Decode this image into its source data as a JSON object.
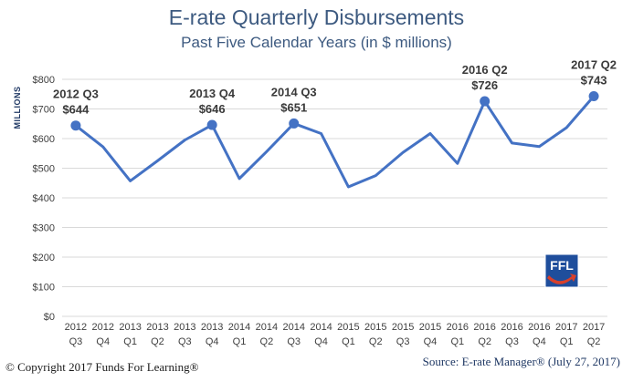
{
  "chart_data": {
    "type": "line",
    "title": "E-rate Quarterly Disbursements",
    "subtitle": "Past Five Calendar Years (in $ millions)",
    "ylabel": "MILLIONS",
    "ylim": [
      0,
      800
    ],
    "yticks": [
      "$0",
      "$100",
      "$200",
      "$300",
      "$400",
      "$500",
      "$600",
      "$700",
      "$800"
    ],
    "grid": true,
    "categories": [
      [
        "2012",
        "Q3"
      ],
      [
        "2012",
        "Q4"
      ],
      [
        "2013",
        "Q1"
      ],
      [
        "2013",
        "Q2"
      ],
      [
        "2013",
        "Q3"
      ],
      [
        "2013",
        "Q4"
      ],
      [
        "2014",
        "Q1"
      ],
      [
        "2014",
        "Q2"
      ],
      [
        "2014",
        "Q3"
      ],
      [
        "2014",
        "Q4"
      ],
      [
        "2015",
        "Q1"
      ],
      [
        "2015",
        "Q2"
      ],
      [
        "2015",
        "Q3"
      ],
      [
        "2015",
        "Q4"
      ],
      [
        "2016",
        "Q1"
      ],
      [
        "2016",
        "Q2"
      ],
      [
        "2016",
        "Q3"
      ],
      [
        "2016",
        "Q4"
      ],
      [
        "2017",
        "Q1"
      ],
      [
        "2017",
        "Q2"
      ]
    ],
    "values": [
      644,
      572,
      457,
      525,
      595,
      646,
      465,
      556,
      651,
      617,
      437,
      475,
      553,
      617,
      516,
      726,
      585,
      573,
      637,
      743
    ],
    "series_color": "#4472c4",
    "annotations": [
      {
        "index": 0,
        "label": "2012 Q3",
        "value_label": "$644"
      },
      {
        "index": 5,
        "label": "2013 Q4",
        "value_label": "$646"
      },
      {
        "index": 8,
        "label": "2014 Q3",
        "value_label": "$651"
      },
      {
        "index": 15,
        "label": "2016 Q2",
        "value_label": "$726"
      },
      {
        "index": 19,
        "label": "2017 Q2",
        "value_label": "$743"
      }
    ]
  },
  "logo": {
    "text": "FFL",
    "icon": "ffl-arrow-logo",
    "colors": {
      "bg": "#1f4e9c",
      "arrow": "#d9402b"
    }
  },
  "footer": {
    "copyright": "© Copyright 2017 Funds For Learning®",
    "source": "Source: E-rate Manager® (July 27, 2017)"
  }
}
